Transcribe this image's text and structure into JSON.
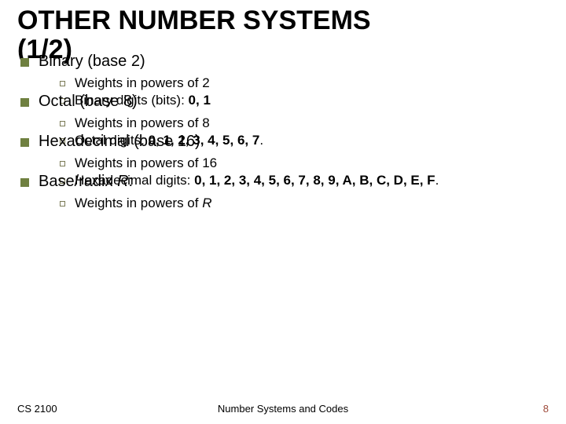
{
  "title_line1": "OTHER NUMBER SYSTEMS",
  "title_line2": "(1/2)",
  "colors": {
    "bullet_level1": "#6f8040",
    "bullet_level2_border": "#7a7a56",
    "text": "#000000",
    "pagenum": "#9e4a3a",
    "background": "#ffffff"
  },
  "sections": [
    {
      "heading": "Binary (base 2)",
      "items": [
        {
          "plain": "Weights in powers of 2",
          "bold": ""
        },
        {
          "plain": "Binary digits (bits): ",
          "bold": "0, 1"
        }
      ]
    },
    {
      "heading": "Octal (base 8)",
      "items": [
        {
          "plain": "Weights in powers of 8",
          "bold": ""
        },
        {
          "plain": "Octal digits: ",
          "bold": "0, 1, 2, 3, 4, 5, 6, 7",
          "tail": "."
        }
      ]
    },
    {
      "heading": "Hexadecimal (base 16)",
      "items": [
        {
          "plain": "Weights in powers of 16",
          "bold": ""
        },
        {
          "plain": "Hexadecimal digits: ",
          "bold": "0, 1, 2, 3, 4, 5, 6, 7, 8, 9, A, B, C, D, E, F",
          "tail": "."
        }
      ]
    }
  ],
  "radix": {
    "heading_prefix": "Base/radix ",
    "heading_italic": "R",
    "heading_suffix": ":",
    "item_prefix": "Weights in powers of ",
    "item_italic": "R"
  },
  "footer": {
    "left": "CS 2100",
    "center": "Number Systems and Codes",
    "page": "8"
  }
}
